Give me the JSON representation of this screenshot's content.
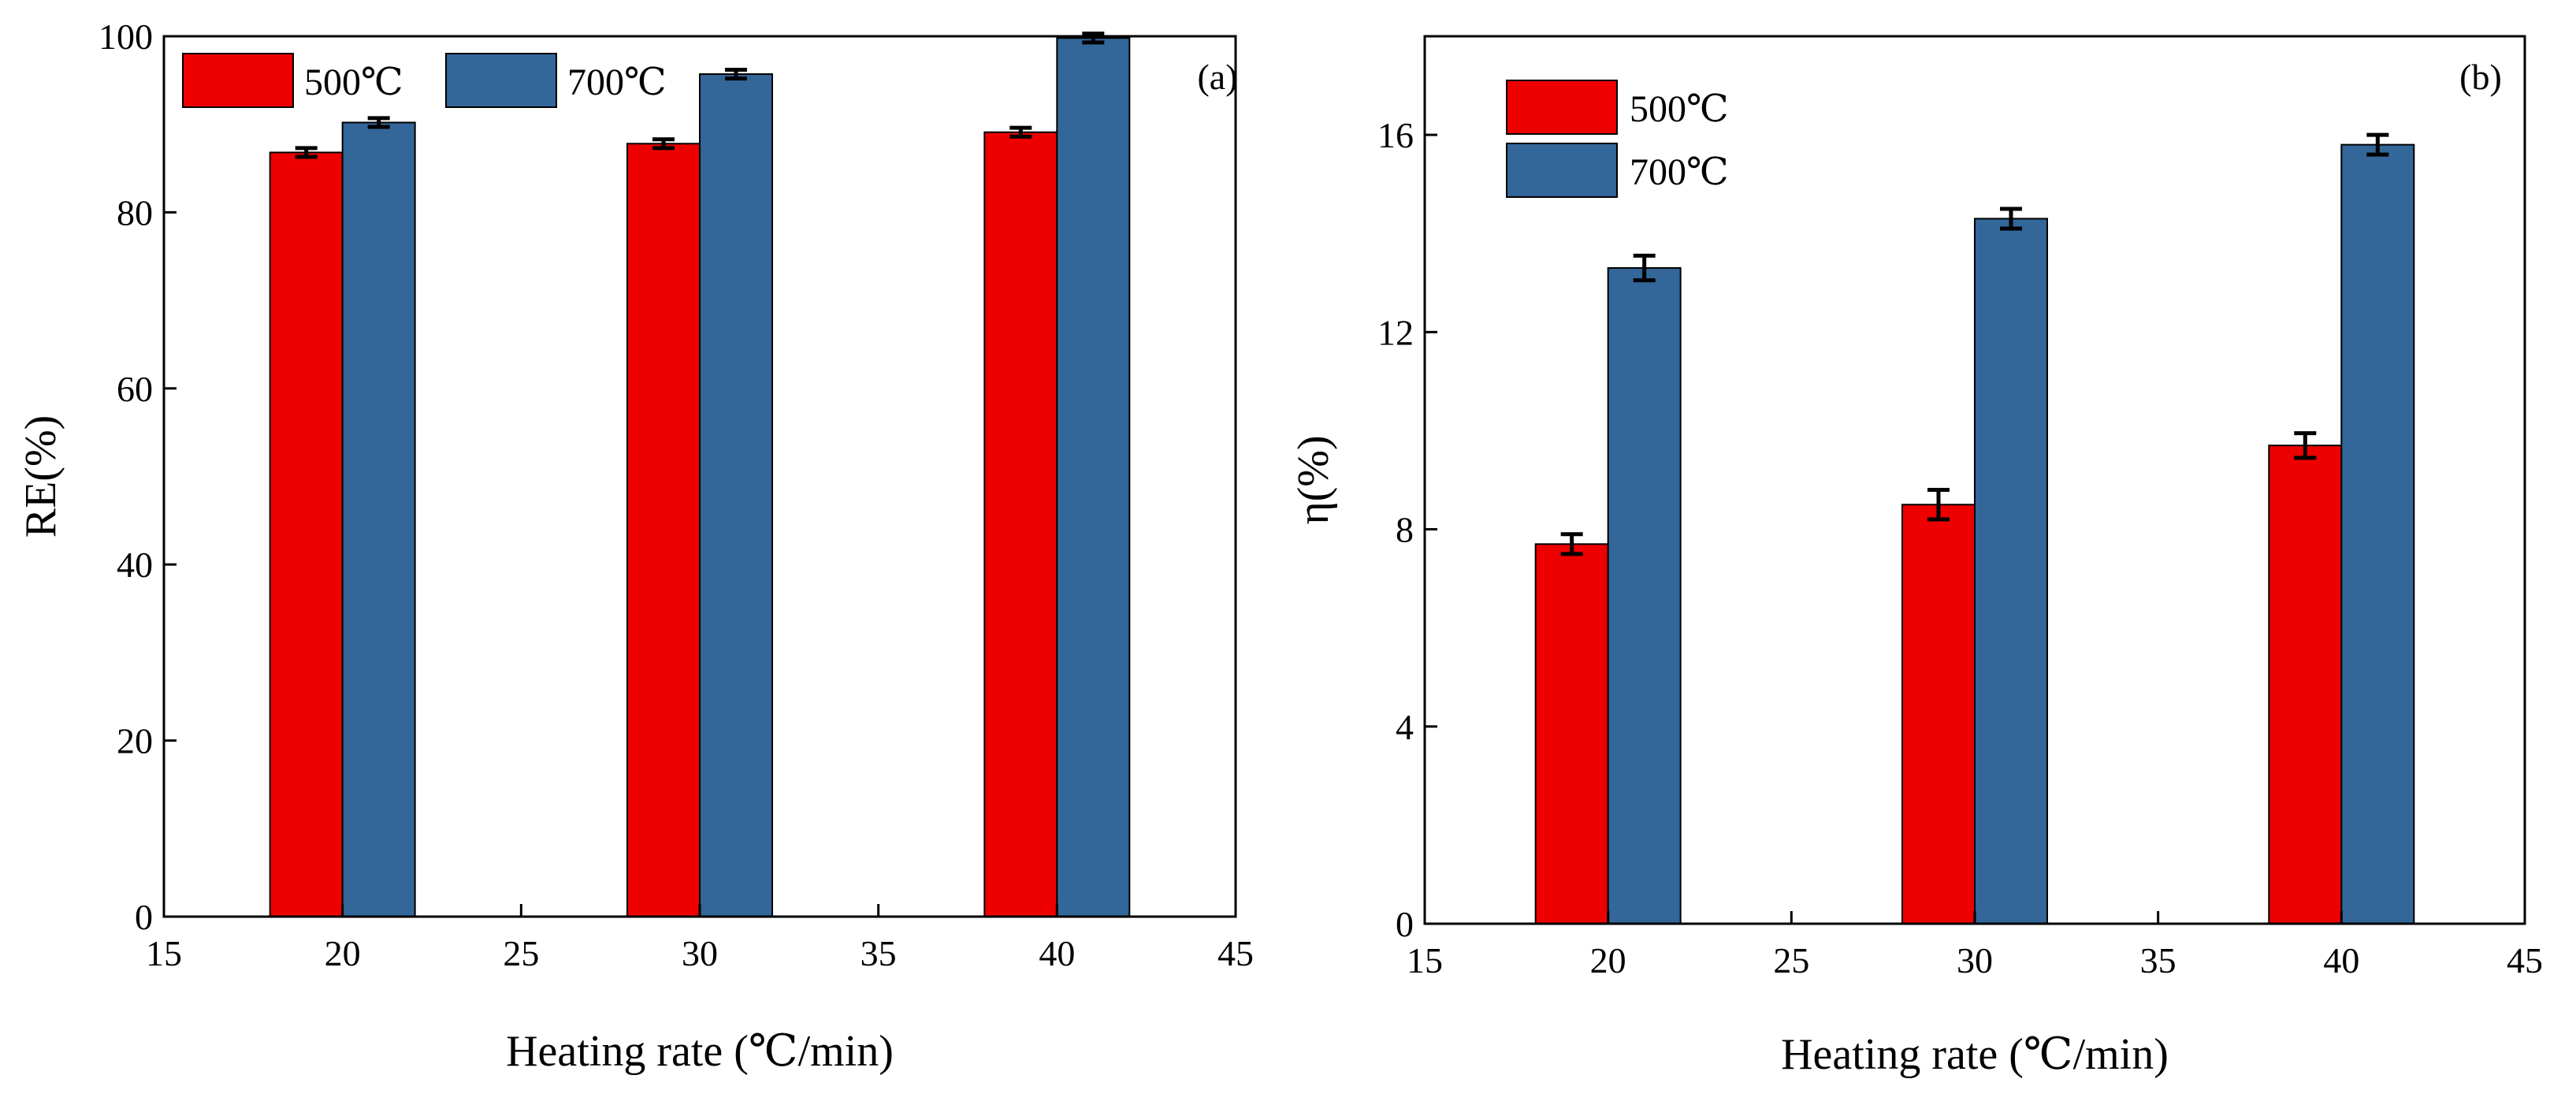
{
  "chart_data": [
    {
      "type": "bar",
      "panel_label": "(a)",
      "xlabel": "Heating rate (℃/min)",
      "ylabel": "RE(%)",
      "xlim": [
        15,
        45
      ],
      "ylim": [
        0,
        100
      ],
      "xticks": [
        "15",
        "20",
        "25",
        "30",
        "35",
        "40",
        "45"
      ],
      "yticks": [
        "0",
        "20",
        "40",
        "60",
        "80",
        "100"
      ],
      "legend": {
        "position": "top-left",
        "orientation": "horizontal"
      },
      "categories": [
        20,
        30,
        40
      ],
      "series": [
        {
          "name": "500℃",
          "color": "#ee0000",
          "values": [
            86.8,
            87.8,
            89.1
          ],
          "errors": [
            0.5,
            0.5,
            0.5
          ]
        },
        {
          "name": "700℃",
          "color": "#336699",
          "values": [
            90.2,
            95.7,
            99.8
          ],
          "errors": [
            0.5,
            0.5,
            0.5
          ]
        }
      ]
    },
    {
      "type": "bar",
      "panel_label": "(b)",
      "xlabel": "Heating rate (℃/min)",
      "ylabel": "η(%)",
      "xlim": [
        15,
        45
      ],
      "ylim": [
        0,
        18
      ],
      "xticks": [
        "15",
        "20",
        "25",
        "30",
        "35",
        "40",
        "45"
      ],
      "yticks": [
        "0",
        "4",
        "8",
        "12",
        "16"
      ],
      "legend": {
        "position": "top-left",
        "orientation": "vertical"
      },
      "categories": [
        20,
        30,
        40
      ],
      "series": [
        {
          "name": "500℃",
          "color": "#ee0000",
          "values": [
            7.7,
            8.5,
            9.7
          ],
          "errors": [
            0.2,
            0.3,
            0.25
          ]
        },
        {
          "name": "700℃",
          "color": "#336699",
          "values": [
            13.3,
            14.3,
            15.8
          ],
          "errors": [
            0.25,
            0.2,
            0.2
          ]
        }
      ]
    }
  ]
}
